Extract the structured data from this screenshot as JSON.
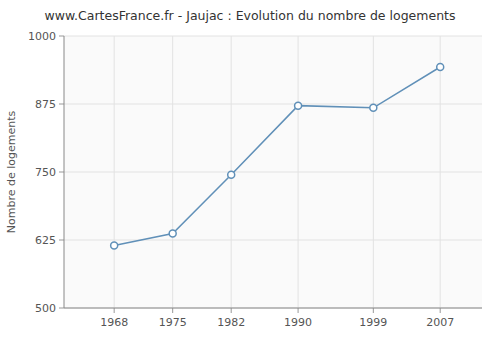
{
  "chart_data": {
    "type": "line",
    "title": "www.CartesFrance.fr - Jaujac : Evolution du nombre de logements",
    "y_label": "Nombre de logements",
    "x": [
      1968,
      1975,
      1982,
      1990,
      1999,
      2007
    ],
    "values": [
      615,
      637,
      745,
      872,
      868,
      943
    ],
    "xlim": [
      1962,
      2012
    ],
    "xticks": [
      1968,
      1975,
      1982,
      1990,
      1999,
      2007
    ],
    "ylim": [
      500,
      1000
    ],
    "yticks": [
      500,
      625,
      750,
      875,
      1000
    ],
    "color": "#6090b8",
    "marker": "circle",
    "grid": true
  }
}
